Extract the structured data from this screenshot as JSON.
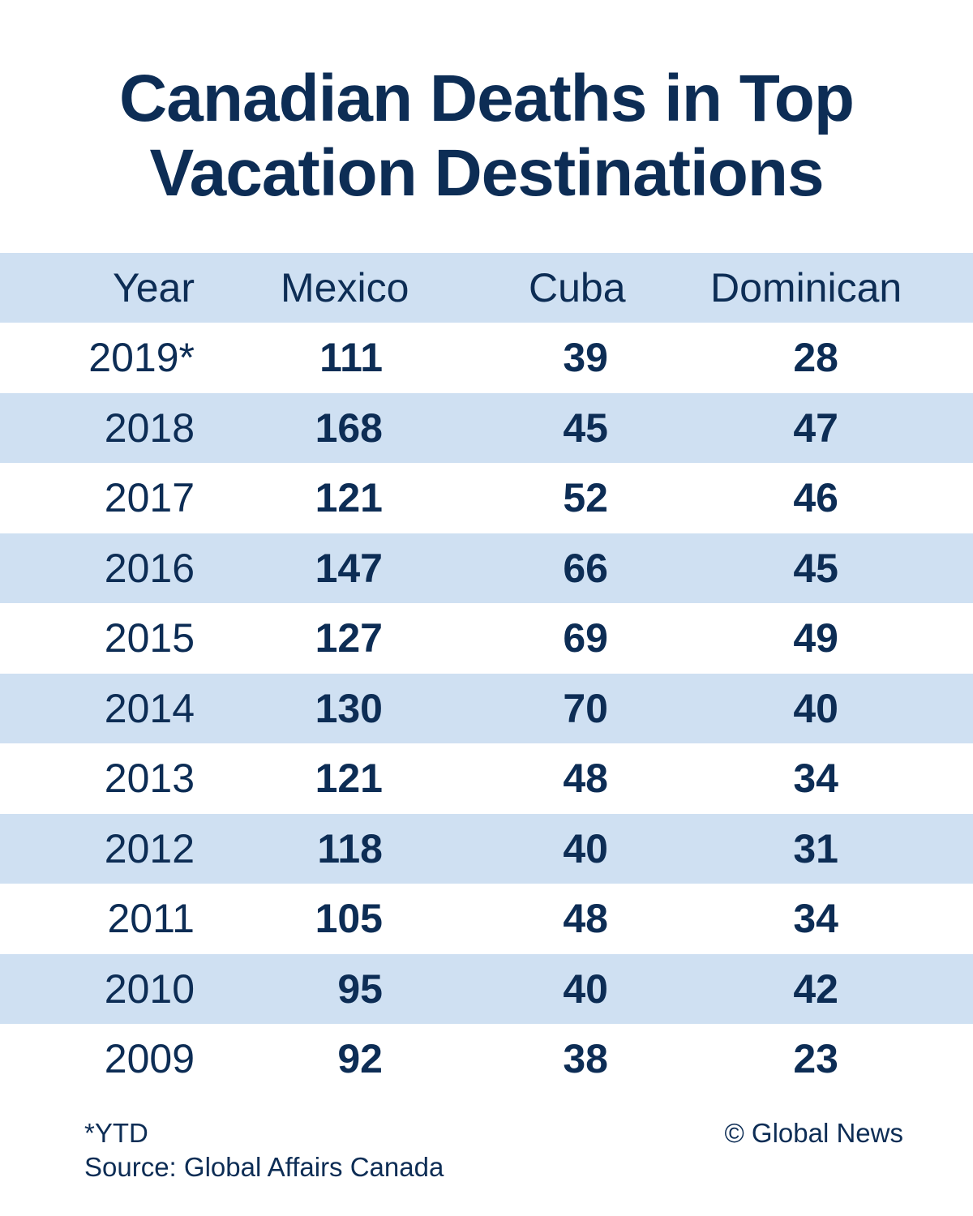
{
  "title_line1": "Canadian Deaths in Top",
  "title_line2": "Vacation Destinations",
  "colors": {
    "text": "#0d2d55",
    "band": "#cfe0f2",
    "background": "#ffffff"
  },
  "chart_data": {
    "type": "table",
    "title": "Canadian Deaths in Top Vacation Destinations",
    "columns": [
      "Year",
      "Mexico",
      "Cuba",
      "Dominican"
    ],
    "rows": [
      {
        "year": "2019*",
        "mexico": 111,
        "cuba": 39,
        "dominican": 28
      },
      {
        "year": "2018",
        "mexico": 168,
        "cuba": 45,
        "dominican": 47
      },
      {
        "year": "2017",
        "mexico": 121,
        "cuba": 52,
        "dominican": 46
      },
      {
        "year": "2016",
        "mexico": 147,
        "cuba": 66,
        "dominican": 45
      },
      {
        "year": "2015",
        "mexico": 127,
        "cuba": 69,
        "dominican": 49
      },
      {
        "year": "2014",
        "mexico": 130,
        "cuba": 70,
        "dominican": 40
      },
      {
        "year": "2013",
        "mexico": 121,
        "cuba": 48,
        "dominican": 34
      },
      {
        "year": "2012",
        "mexico": 118,
        "cuba": 40,
        "dominican": 31
      },
      {
        "year": "2011",
        "mexico": 105,
        "cuba": 48,
        "dominican": 34
      },
      {
        "year": "2010",
        "mexico": 95,
        "cuba": 40,
        "dominican": 42
      },
      {
        "year": "2009",
        "mexico": 92,
        "cuba": 38,
        "dominican": 23
      }
    ]
  },
  "footer": {
    "note": "*YTD",
    "source": "Source: Global Affairs Canada",
    "credit": "© Global News"
  }
}
